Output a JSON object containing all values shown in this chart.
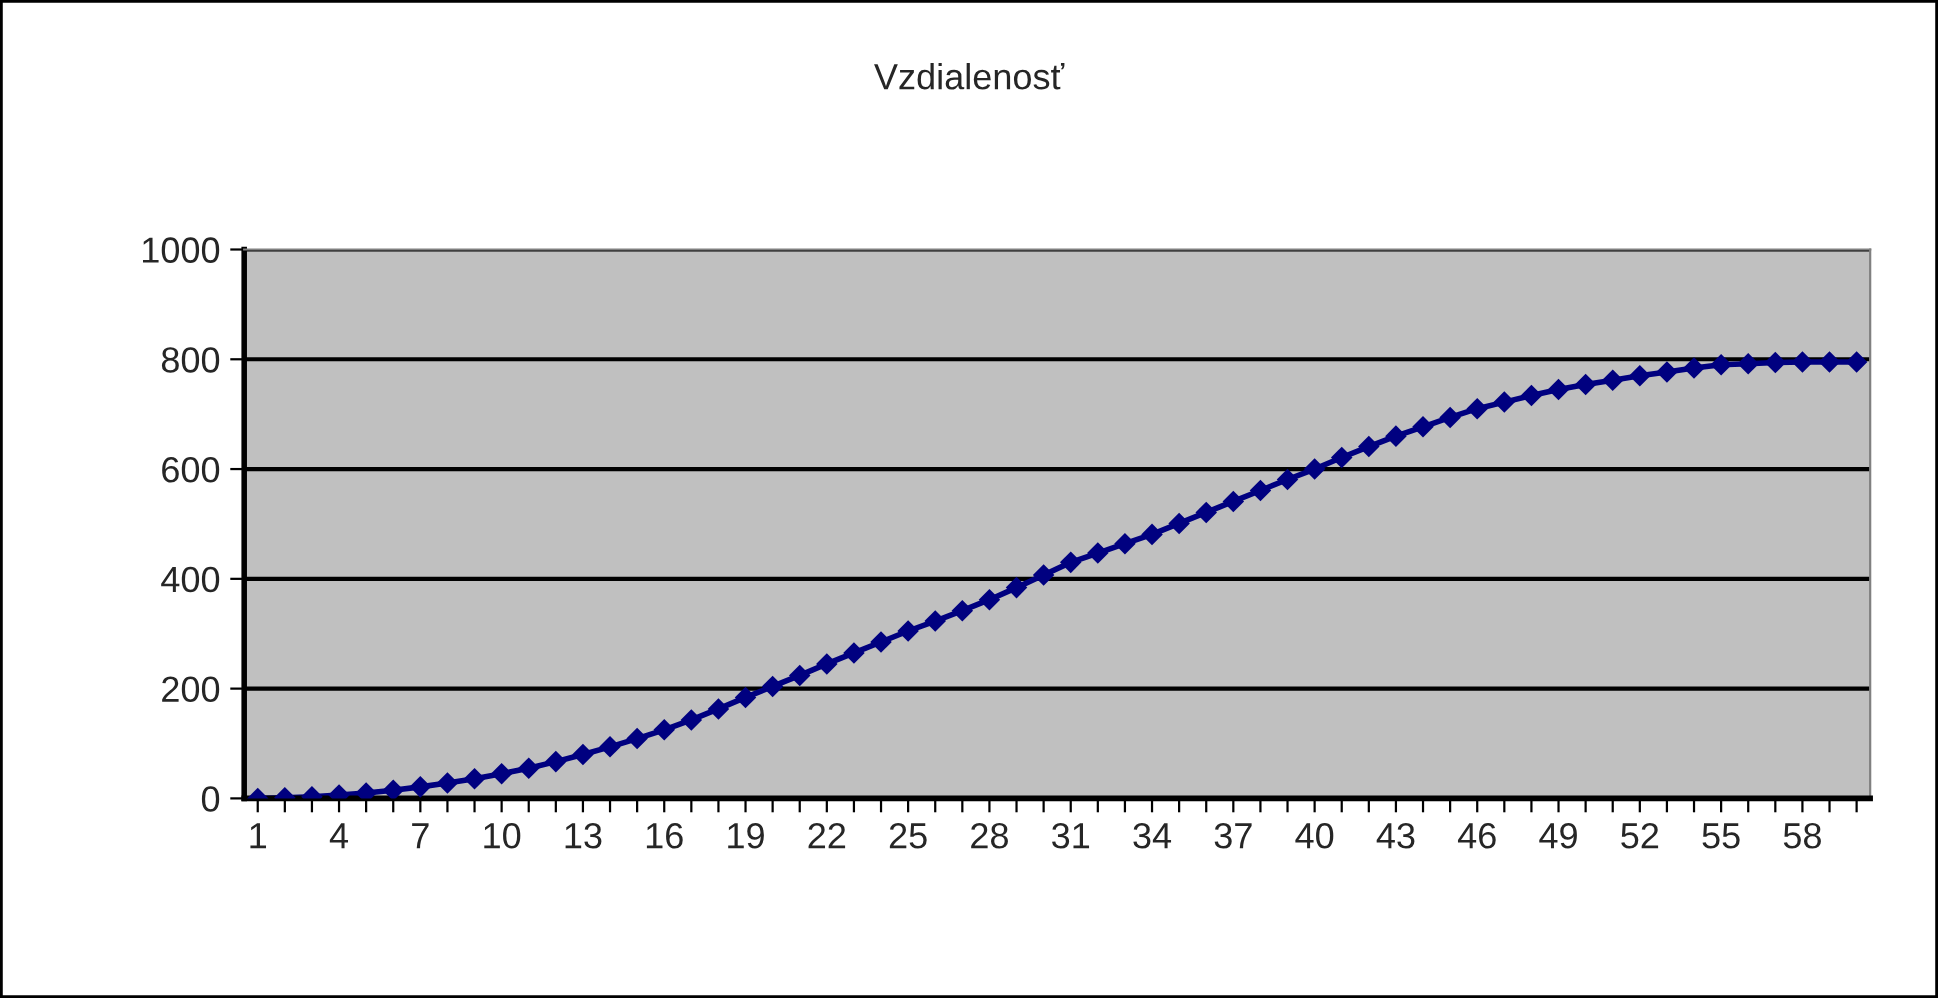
{
  "chart_data": {
    "type": "line",
    "title": "Vzdialenosť",
    "categories": [
      "1",
      null,
      null,
      "4",
      null,
      null,
      "7",
      null,
      null,
      "10",
      null,
      null,
      "13",
      null,
      null,
      "16",
      null,
      null,
      "19",
      null,
      null,
      "22",
      null,
      null,
      "25",
      null,
      null,
      "28",
      null,
      null,
      "31",
      null,
      null,
      "34",
      null,
      null,
      "37",
      null,
      null,
      "40",
      null,
      null,
      "43",
      null,
      null,
      "46",
      null,
      null,
      "49",
      null,
      null,
      "52",
      null,
      null,
      "55",
      null,
      null,
      "58",
      null,
      null
    ],
    "series": [
      {
        "color": "#000080",
        "values": [
          0,
          1,
          3,
          6,
          10,
          15,
          21,
          28,
          36,
          45,
          55,
          67,
          80,
          94,
          109,
          125,
          143,
          163,
          184,
          204,
          224,
          245,
          265,
          285,
          305,
          323,
          342,
          362,
          384,
          407,
          430,
          447,
          464,
          481,
          501,
          521,
          541,
          561,
          581,
          600,
          621,
          641,
          660,
          677,
          694,
          710,
          722,
          734,
          745,
          754,
          762,
          770,
          777,
          784,
          790,
          792,
          794,
          795,
          795,
          795
        ]
      }
    ],
    "ylim": [
      0,
      1000
    ],
    "yticks": [
      0,
      200,
      400,
      600,
      800,
      1000
    ],
    "grid": "y",
    "legend": false,
    "marker": "diamond",
    "line_style": "solid"
  }
}
